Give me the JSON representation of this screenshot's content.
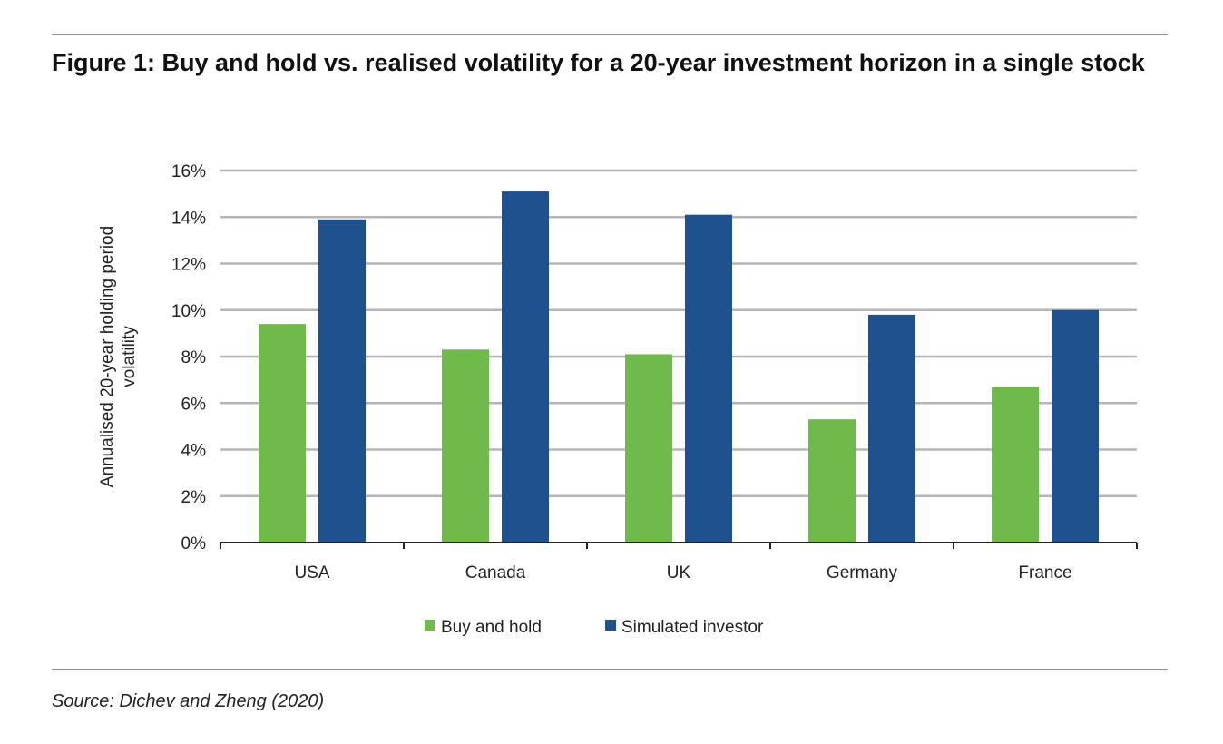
{
  "title": "Figure 1: Buy and hold vs. realised volatility for a 20-year investment horizon in a single stock",
  "source": "Source: Dichev and Zheng (2020)",
  "chart_data": {
    "type": "bar",
    "categories": [
      "USA",
      "Canada",
      "UK",
      "Germany",
      "France"
    ],
    "series": [
      {
        "name": "Buy and hold",
        "color": "#70b94b",
        "values": [
          9.4,
          8.3,
          8.1,
          5.3,
          6.7
        ]
      },
      {
        "name": "Simulated investor",
        "color": "#1f518f",
        "values": [
          13.9,
          15.1,
          14.1,
          9.8,
          10.0
        ]
      }
    ],
    "ylabel": "Annualised 20-year holding period volatility",
    "ylim": [
      0,
      16
    ],
    "yticks": [
      "0%",
      "2%",
      "4%",
      "6%",
      "8%",
      "10%",
      "12%",
      "14%",
      "16%"
    ],
    "grid": true,
    "legend": "bottom"
  }
}
